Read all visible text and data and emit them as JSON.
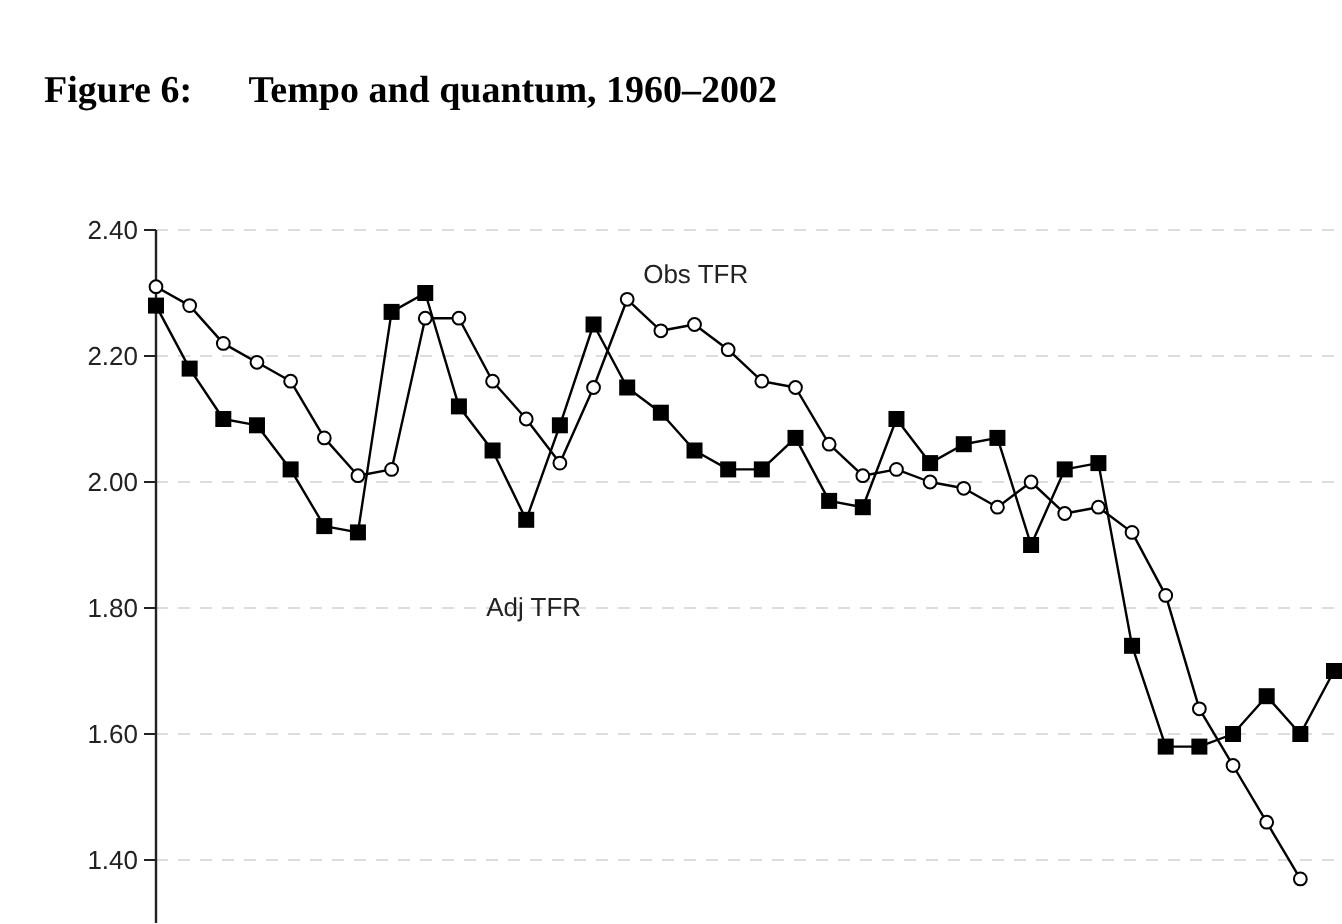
{
  "chart_data": {
    "type": "line",
    "title": "Figure 6:      Tempo and quantum, 1960–2002",
    "categories": [
      null,
      null,
      null,
      null,
      null,
      null,
      null,
      null,
      null,
      null,
      null,
      null,
      null,
      null,
      null,
      null,
      null,
      null,
      null,
      null,
      null,
      null,
      null,
      null,
      null,
      null,
      null,
      null,
      null,
      null,
      null,
      null,
      null,
      null,
      null,
      null
    ],
    "series": [
      {
        "name": "Obs TFR",
        "color": "#000000",
        "marker": "circle",
        "values": [
          2.31,
          2.28,
          2.22,
          2.19,
          2.16,
          2.07,
          2.01,
          2.02,
          2.26,
          2.26,
          2.16,
          2.1,
          2.03,
          2.15,
          2.29,
          2.24,
          2.25,
          2.21,
          2.16,
          2.15,
          2.06,
          2.01,
          2.02,
          2.0,
          1.99,
          1.96,
          2.0,
          1.95,
          1.96,
          1.92,
          1.82,
          1.64,
          1.55,
          1.46,
          1.37,
          null
        ]
      },
      {
        "name": "Adj TFR",
        "color": "#000000",
        "marker": "square",
        "values": [
          2.28,
          2.18,
          2.1,
          2.09,
          2.02,
          1.93,
          1.92,
          2.27,
          2.3,
          2.12,
          2.05,
          1.94,
          2.09,
          2.25,
          2.15,
          2.11,
          2.05,
          2.02,
          2.02,
          2.07,
          1.97,
          1.96,
          2.1,
          2.03,
          2.06,
          2.07,
          1.9,
          2.02,
          2.03,
          1.74,
          1.58,
          1.58,
          1.6,
          1.66,
          1.6,
          1.7
        ]
      }
    ],
    "ylim": [
      1.3,
      2.4
    ],
    "yticks": [
      {
        "value": 1.4,
        "label": "1.40"
      },
      {
        "value": 1.6,
        "label": "1.60"
      },
      {
        "value": 1.8,
        "label": "1.80"
      },
      {
        "value": 2.0,
        "label": "2.00"
      },
      {
        "value": 2.2,
        "label": "2.20"
      },
      {
        "value": 2.4,
        "label": "2.40"
      }
    ],
    "grid": "y",
    "tick_labels": "y",
    "line_style": "solid"
  }
}
